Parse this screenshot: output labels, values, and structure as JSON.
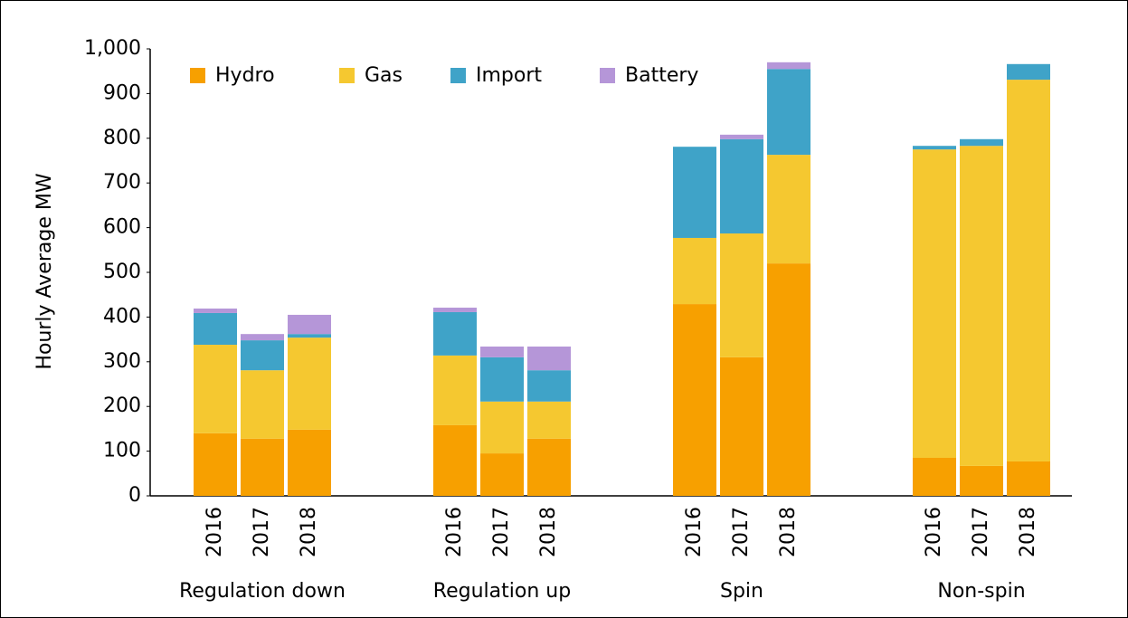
{
  "chart_data": {
    "type": "stacked_bar",
    "y_label": "Hourly Average MW",
    "groups": [
      "Regulation down",
      "Regulation up",
      "Spin",
      "Non-spin"
    ],
    "categories": [
      "2016",
      "2017",
      "2018",
      "2016",
      "2017",
      "2018",
      "2016",
      "2017",
      "2018",
      "2016",
      "2017",
      "2018"
    ],
    "series": [
      {
        "name": "Hydro",
        "color": "#f7a000",
        "values": [
          140,
          128,
          148,
          158,
          95,
          128,
          429,
          310,
          520,
          85,
          67,
          77
        ]
      },
      {
        "name": "Gas",
        "color": "#f5c830",
        "values": [
          198,
          153,
          206,
          156,
          116,
          83,
          148,
          277,
          243,
          690,
          716,
          854
        ]
      },
      {
        "name": "Import",
        "color": "#3fa3c8",
        "values": [
          71,
          67,
          8,
          97,
          99,
          70,
          204,
          211,
          192,
          8,
          15,
          35
        ]
      },
      {
        "name": "Battery",
        "color": "#b596d8",
        "values": [
          10,
          14,
          43,
          10,
          24,
          53,
          0,
          10,
          15,
          0,
          0,
          0
        ]
      }
    ],
    "ylim": [
      0,
      1000
    ],
    "yticks": [
      0,
      100,
      200,
      300,
      400,
      500,
      600,
      700,
      800,
      900,
      {
        "value": 1000,
        "label": "1,000"
      }
    ],
    "legend": "top-left"
  }
}
